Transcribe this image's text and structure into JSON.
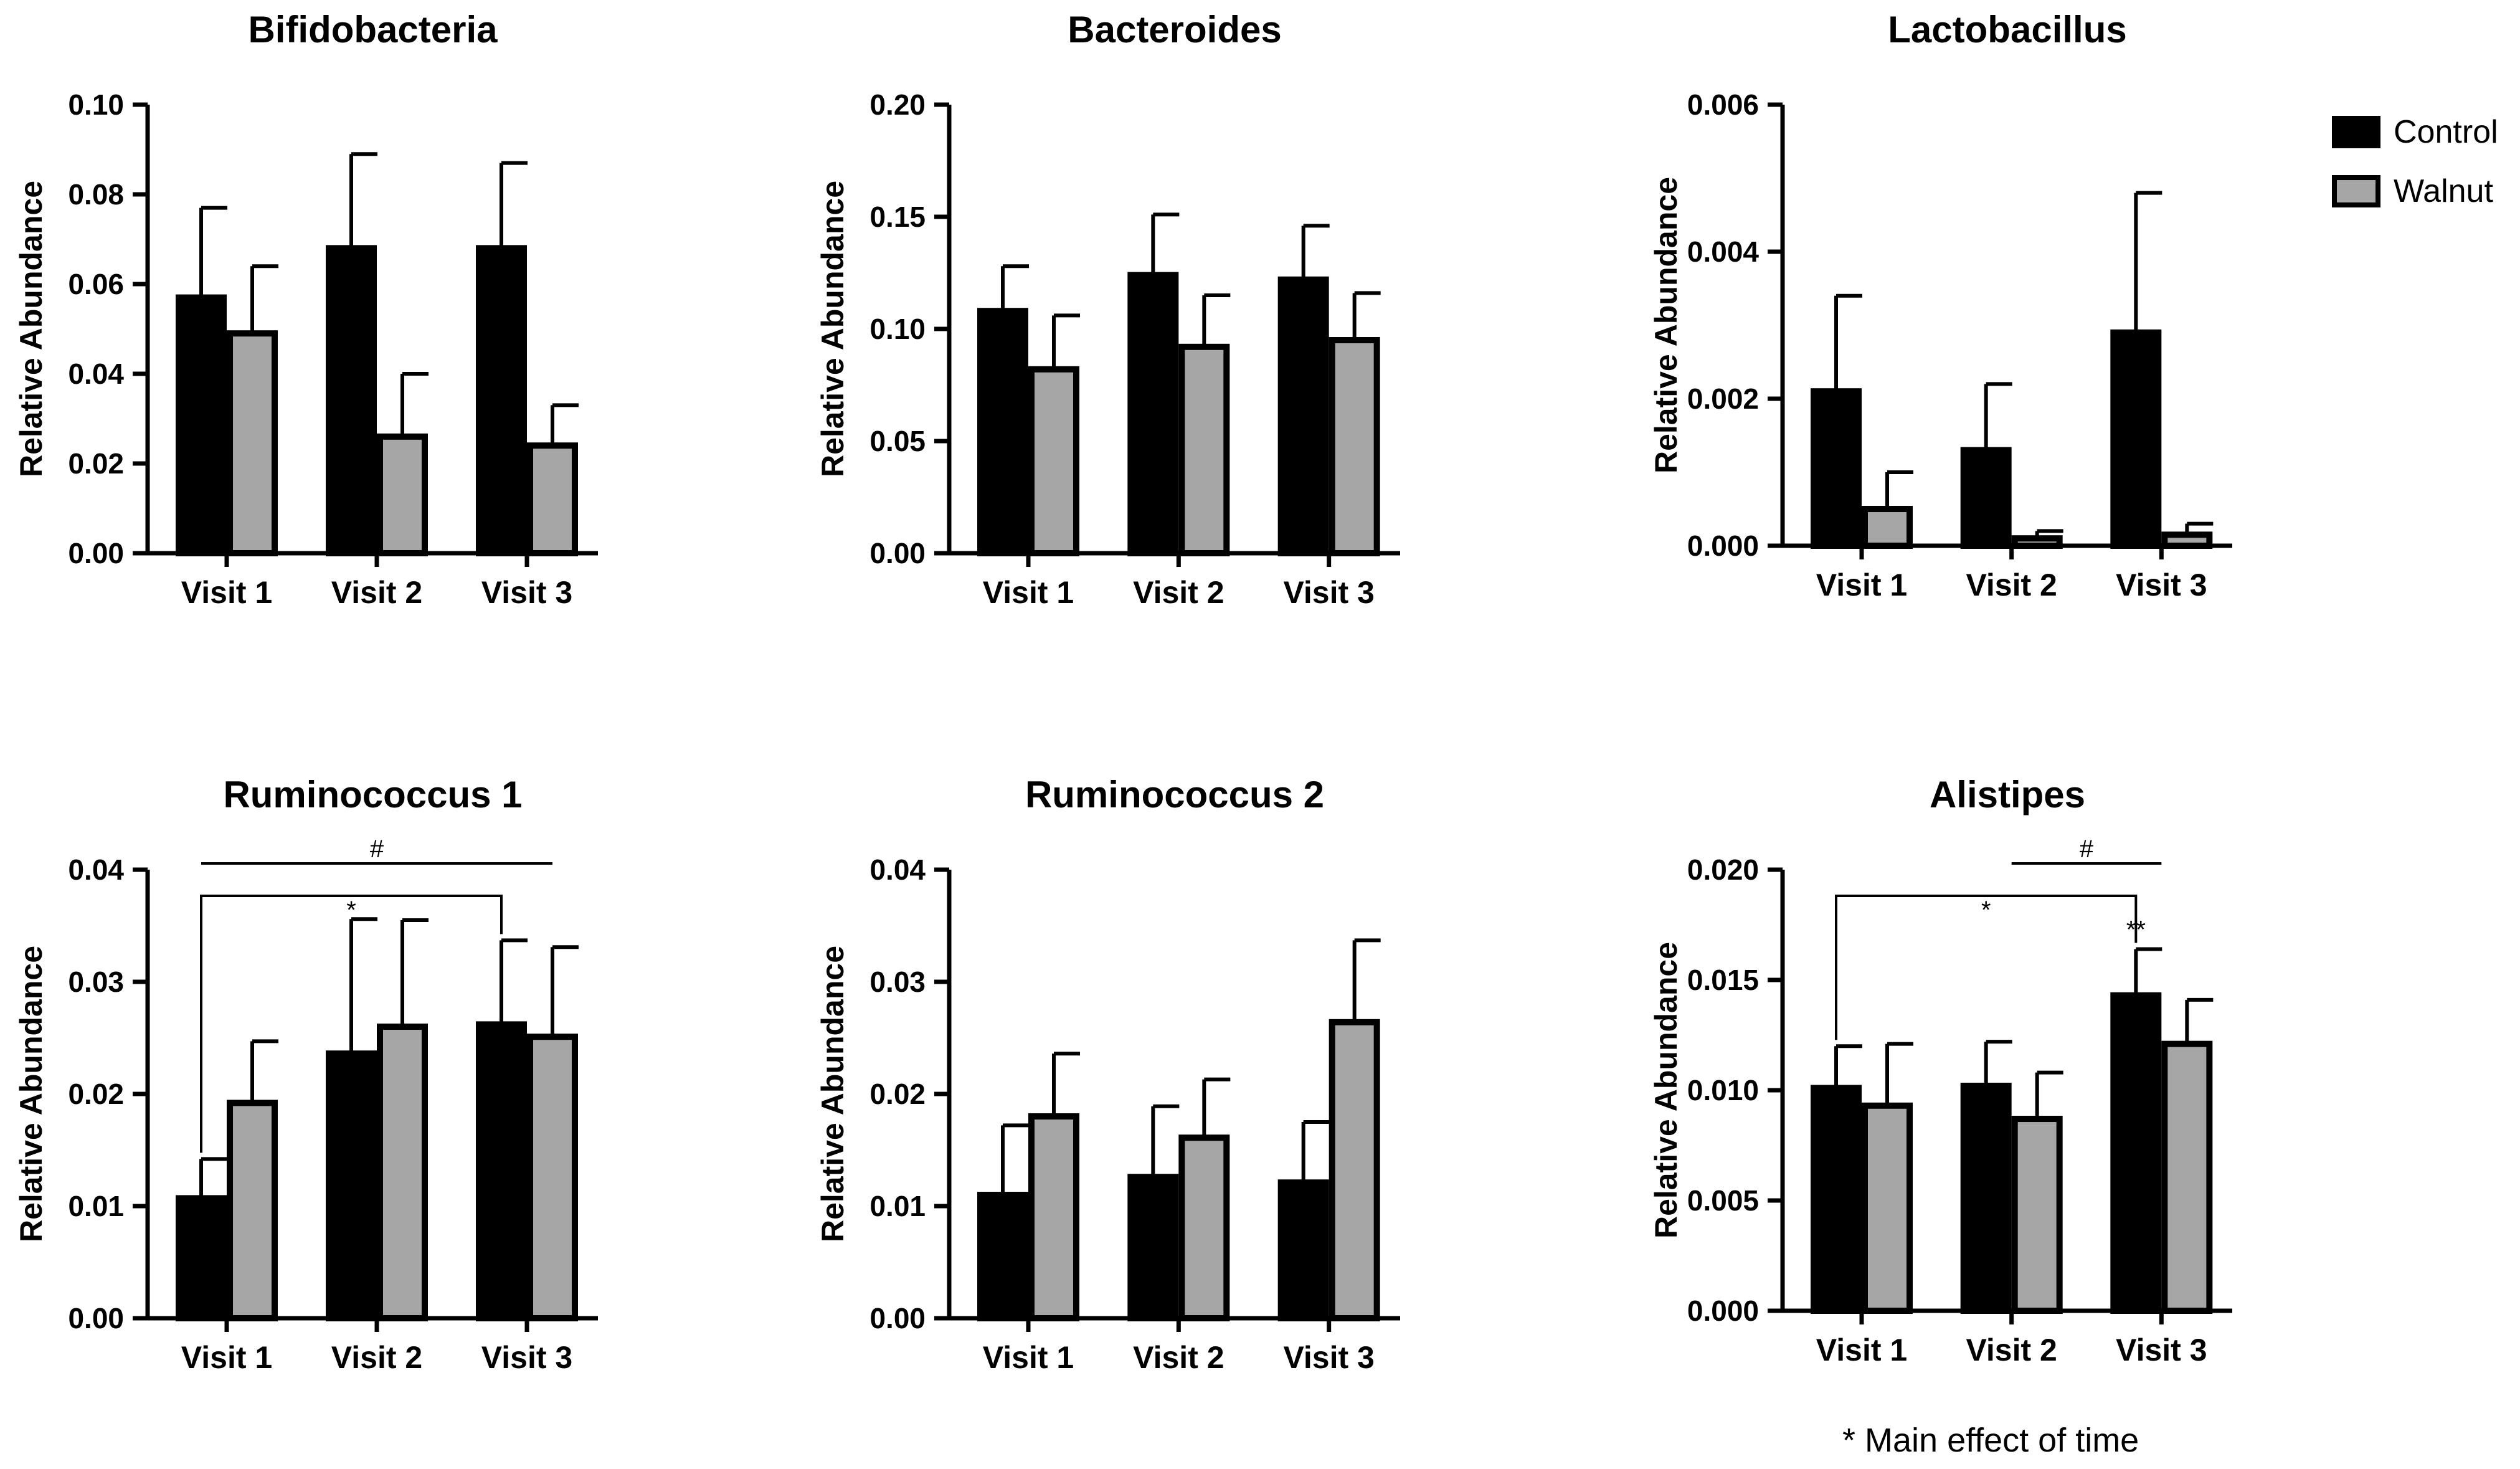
{
  "legend": [
    {
      "label": "Control",
      "color": "#000000"
    },
    {
      "label": "Walnut",
      "color": "#a6a6a6"
    }
  ],
  "footnote": "* Main effect of time",
  "chart_data": [
    {
      "type": "bar",
      "title": "Bifidobacteria",
      "ylabel": "Relative Abundance",
      "categories": [
        "Visit 1",
        "Visit 2",
        "Visit 3"
      ],
      "ylim": [
        0,
        0.1
      ],
      "yticks": [
        "0.00",
        "0.02",
        "0.04",
        "0.06",
        "0.08",
        "0.10"
      ],
      "series": [
        {
          "name": "Control",
          "values": [
            0.057,
            0.068,
            0.068
          ],
          "errors": [
            0.02,
            0.021,
            0.019
          ]
        },
        {
          "name": "Walnut",
          "values": [
            0.049,
            0.026,
            0.024
          ],
          "errors": [
            0.015,
            0.014,
            0.009
          ]
        }
      ],
      "annotations": []
    },
    {
      "type": "bar",
      "title": "Bacteroides",
      "ylabel": "Relative Abundance",
      "categories": [
        "Visit 1",
        "Visit 2",
        "Visit 3"
      ],
      "ylim": [
        0,
        0.2
      ],
      "yticks": [
        "0.00",
        "0.05",
        "0.10",
        "0.15",
        "0.20"
      ],
      "series": [
        {
          "name": "Control",
          "values": [
            0.108,
            0.124,
            0.122
          ],
          "errors": [
            0.02,
            0.027,
            0.024
          ]
        },
        {
          "name": "Walnut",
          "values": [
            0.082,
            0.092,
            0.095
          ],
          "errors": [
            0.024,
            0.023,
            0.021
          ]
        }
      ],
      "annotations": []
    },
    {
      "type": "bar",
      "title": "Lactobacillus",
      "ylabel": "Relative Abundance",
      "categories": [
        "Visit 1",
        "Visit 2",
        "Visit 3"
      ],
      "ylim": [
        0,
        0.006
      ],
      "yticks": [
        "0.000",
        "0.002",
        "0.004",
        "0.006"
      ],
      "series": [
        {
          "name": "Control",
          "values": [
            0.0021,
            0.0013,
            0.0029
          ],
          "errors": [
            0.0013,
            0.0009,
            0.0019
          ]
        },
        {
          "name": "Walnut",
          "values": [
            0.0005,
            0.0001,
            0.00015
          ],
          "errors": [
            0.0005,
            0.0001,
            0.00015
          ]
        }
      ],
      "annotations": []
    },
    {
      "type": "bar",
      "title": "Ruminococcus 1",
      "ylabel": "Relative Abundance",
      "categories": [
        "Visit 1",
        "Visit 2",
        "Visit 3"
      ],
      "ylim": [
        0,
        0.04
      ],
      "yticks": [
        "0.00",
        "0.01",
        "0.02",
        "0.03",
        "0.04"
      ],
      "series": [
        {
          "name": "Control",
          "values": [
            0.0107,
            0.0236,
            0.0262
          ],
          "errors": [
            0.0035,
            0.012,
            0.0075
          ]
        },
        {
          "name": "Walnut",
          "values": [
            0.0192,
            0.026,
            0.0251
          ],
          "errors": [
            0.0055,
            0.0095,
            0.008
          ]
        }
      ],
      "annotations": [
        {
          "symbol": "#",
          "from": 0,
          "to": 2,
          "style": "line"
        },
        {
          "symbol": "*",
          "from": 0,
          "to": 2,
          "style": "bracket"
        }
      ]
    },
    {
      "type": "bar",
      "title": "Ruminococcus 2",
      "ylabel": "Relative Abundance",
      "categories": [
        "Visit 1",
        "Visit 2",
        "Visit 3"
      ],
      "ylim": [
        0,
        0.04
      ],
      "yticks": [
        "0.00",
        "0.01",
        "0.02",
        "0.03",
        "0.04"
      ],
      "series": [
        {
          "name": "Control",
          "values": [
            0.011,
            0.0126,
            0.0121
          ],
          "errors": [
            0.0062,
            0.0063,
            0.0054
          ]
        },
        {
          "name": "Walnut",
          "values": [
            0.018,
            0.0161,
            0.0264
          ],
          "errors": [
            0.0056,
            0.0052,
            0.0073
          ]
        }
      ],
      "annotations": []
    },
    {
      "type": "bar",
      "title": "Alistipes",
      "ylabel": "Relative Abundance",
      "categories": [
        "Visit 1",
        "Visit 2",
        "Visit 3"
      ],
      "ylim": [
        0,
        0.02
      ],
      "yticks": [
        "0.000",
        "0.005",
        "0.010",
        "0.015",
        "0.020"
      ],
      "series": [
        {
          "name": "Control",
          "values": [
            0.0101,
            0.0102,
            0.0143
          ],
          "errors": [
            0.0019,
            0.002,
            0.0021
          ]
        },
        {
          "name": "Walnut",
          "values": [
            0.0093,
            0.0087,
            0.0121
          ],
          "errors": [
            0.0028,
            0.0021,
            0.002
          ]
        }
      ],
      "annotations": [
        {
          "symbol": "#",
          "from": 1,
          "to": 2,
          "style": "line"
        },
        {
          "symbol": "*",
          "from": 0,
          "to": 2,
          "style": "bracket"
        },
        {
          "symbol": "**",
          "at": 2,
          "style": "above-bar"
        }
      ]
    }
  ]
}
